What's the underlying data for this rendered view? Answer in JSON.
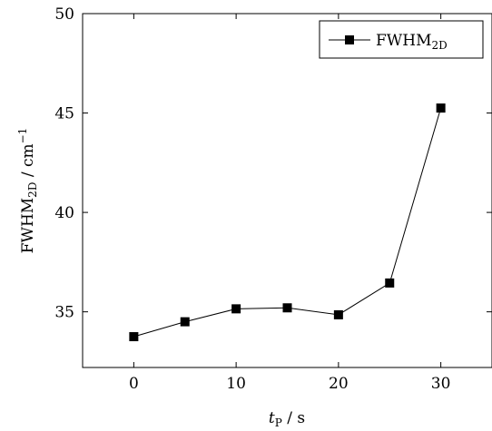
{
  "chart_data": {
    "type": "line",
    "x": [
      0,
      5,
      10,
      15,
      20,
      25,
      30
    ],
    "series": [
      {
        "name": "FWHM",
        "name_sub": "2D",
        "values": [
          33.75,
          34.5,
          35.15,
          35.2,
          34.85,
          36.45,
          45.25
        ]
      }
    ],
    "xlim": [
      -5,
      35
    ],
    "ylim": [
      32.2,
      50
    ],
    "xticks": [
      0,
      10,
      20,
      30
    ],
    "yticks": [
      35,
      40,
      45,
      50
    ],
    "xlabel": {
      "main": "t",
      "sub": "P",
      "unit": " / s"
    },
    "ylabel": {
      "main": "FWHM",
      "sub": "2D",
      "unit": " / cm",
      "sup": "−1"
    },
    "legend_position": "top-right",
    "grid": false,
    "marker": "square",
    "color": "#000000"
  }
}
